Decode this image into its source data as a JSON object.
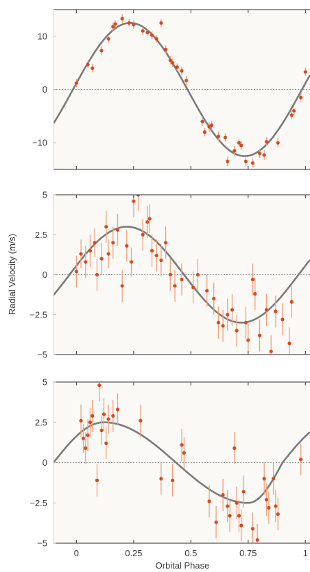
{
  "figure": {
    "ylabel": "Radial Velocity (m/s)",
    "xlabel": "Orbital Phase",
    "x_tick_labels": [
      "0",
      "0.25",
      "0.5",
      "0.75",
      "1"
    ]
  },
  "colors": {
    "point": "#d9481f",
    "errorbar": "#f0a07c",
    "model_curve": "#7a7a7a",
    "zero_line": "#9a9a9a",
    "frame": "#555555",
    "plot_bg": "#fbf9f5"
  },
  "chart_data": [
    {
      "type": "scatter",
      "xlim": [
        -0.1,
        1.02
      ],
      "ylim": [
        -15,
        15
      ],
      "y_ticks": [
        -10,
        0,
        10
      ],
      "y_tick_labels": [
        "−10",
        "0",
        "10"
      ],
      "model": {
        "amplitude": 12.5,
        "peak_phase": 0.235
      },
      "points": [
        {
          "x": 0.0,
          "y": 1.2,
          "err": 0.8
        },
        {
          "x": 0.05,
          "y": 4.7,
          "err": 0.7
        },
        {
          "x": 0.07,
          "y": 4.0,
          "err": 0.8
        },
        {
          "x": 0.11,
          "y": 7.3,
          "err": 0.8
        },
        {
          "x": 0.14,
          "y": 9.5,
          "err": 0.7
        },
        {
          "x": 0.16,
          "y": 11.8,
          "err": 0.8
        },
        {
          "x": 0.17,
          "y": 12.3,
          "err": 0.7
        },
        {
          "x": 0.2,
          "y": 13.3,
          "err": 0.8
        },
        {
          "x": 0.23,
          "y": 12.5,
          "err": 0.7
        },
        {
          "x": 0.25,
          "y": 12.2,
          "err": 0.8
        },
        {
          "x": 0.29,
          "y": 11.0,
          "err": 0.8
        },
        {
          "x": 0.31,
          "y": 10.7,
          "err": 0.7
        },
        {
          "x": 0.33,
          "y": 10.2,
          "err": 0.8
        },
        {
          "x": 0.35,
          "y": 9.5,
          "err": 0.7
        },
        {
          "x": 0.37,
          "y": 12.5,
          "err": 0.8
        },
        {
          "x": 0.39,
          "y": 7.5,
          "err": 0.8
        },
        {
          "x": 0.41,
          "y": 5.5,
          "err": 0.8
        },
        {
          "x": 0.42,
          "y": 5.0,
          "err": 0.8
        },
        {
          "x": 0.44,
          "y": 4.2,
          "err": 0.7
        },
        {
          "x": 0.46,
          "y": 3.5,
          "err": 0.8
        },
        {
          "x": 0.48,
          "y": 1.7,
          "err": 0.8
        },
        {
          "x": 0.55,
          "y": -6.0,
          "err": 0.9
        },
        {
          "x": 0.56,
          "y": -8.0,
          "err": 0.8
        },
        {
          "x": 0.58,
          "y": -7.0,
          "err": 0.9
        },
        {
          "x": 0.59,
          "y": -6.7,
          "err": 0.8
        },
        {
          "x": 0.62,
          "y": -8.8,
          "err": 0.9
        },
        {
          "x": 0.65,
          "y": -9.0,
          "err": 0.8
        },
        {
          "x": 0.66,
          "y": -13.5,
          "err": 0.9
        },
        {
          "x": 0.69,
          "y": -11.5,
          "err": 0.9
        },
        {
          "x": 0.71,
          "y": -10.0,
          "err": 0.8
        },
        {
          "x": 0.72,
          "y": -10.5,
          "err": 0.9
        },
        {
          "x": 0.74,
          "y": -13.5,
          "err": 0.9
        },
        {
          "x": 0.77,
          "y": -13.8,
          "err": 0.8
        },
        {
          "x": 0.8,
          "y": -12.0,
          "err": 0.9
        },
        {
          "x": 0.82,
          "y": -12.3,
          "err": 0.9
        },
        {
          "x": 0.83,
          "y": -9.8,
          "err": 0.8
        },
        {
          "x": 0.88,
          "y": -10.0,
          "err": 0.9
        },
        {
          "x": 0.94,
          "y": -4.8,
          "err": 0.8
        },
        {
          "x": 0.95,
          "y": -4.0,
          "err": 0.8
        },
        {
          "x": 0.98,
          "y": -1.5,
          "err": 0.8
        },
        {
          "x": 1.0,
          "y": 3.3,
          "err": 0.8
        }
      ]
    },
    {
      "type": "scatter",
      "xlim": [
        -0.1,
        1.02
      ],
      "ylim": [
        -5,
        5
      ],
      "y_ticks": [
        -5,
        -2.5,
        0,
        2.5,
        5
      ],
      "y_tick_labels": [
        "−5",
        "−2.5",
        "0",
        "2.5",
        "5"
      ],
      "model": {
        "amplitude": 3.0,
        "peak_phase": 0.22
      },
      "points": [
        {
          "x": 0.0,
          "y": 0.2,
          "err": 1.0
        },
        {
          "x": 0.02,
          "y": 1.3,
          "err": 0.9
        },
        {
          "x": 0.04,
          "y": 0.8,
          "err": 1.0
        },
        {
          "x": 0.06,
          "y": 1.5,
          "err": 1.0
        },
        {
          "x": 0.08,
          "y": 2.0,
          "err": 0.9
        },
        {
          "x": 0.09,
          "y": 0.0,
          "err": 1.0
        },
        {
          "x": 0.11,
          "y": 1.0,
          "err": 1.0
        },
        {
          "x": 0.13,
          "y": 3.0,
          "err": 1.0
        },
        {
          "x": 0.14,
          "y": 1.3,
          "err": 0.9
        },
        {
          "x": 0.16,
          "y": 2.0,
          "err": 1.0
        },
        {
          "x": 0.18,
          "y": 2.8,
          "err": 1.0
        },
        {
          "x": 0.2,
          "y": -0.7,
          "err": 1.0
        },
        {
          "x": 0.22,
          "y": 1.8,
          "err": 1.0
        },
        {
          "x": 0.24,
          "y": 0.8,
          "err": 0.9
        },
        {
          "x": 0.25,
          "y": 4.6,
          "err": 1.0
        },
        {
          "x": 0.27,
          "y": 5.0,
          "err": 1.0
        },
        {
          "x": 0.29,
          "y": 2.5,
          "err": 1.0
        },
        {
          "x": 0.31,
          "y": 3.3,
          "err": 1.0
        },
        {
          "x": 0.32,
          "y": 3.5,
          "err": 0.9
        },
        {
          "x": 0.33,
          "y": 1.5,
          "err": 1.0
        },
        {
          "x": 0.35,
          "y": 1.2,
          "err": 1.0
        },
        {
          "x": 0.37,
          "y": 0.9,
          "err": 1.0
        },
        {
          "x": 0.39,
          "y": 2.0,
          "err": 1.0
        },
        {
          "x": 0.41,
          "y": 0.0,
          "err": 1.0
        },
        {
          "x": 0.43,
          "y": -0.7,
          "err": 1.0
        },
        {
          "x": 0.46,
          "y": -0.3,
          "err": 1.0
        },
        {
          "x": 0.51,
          "y": -0.8,
          "err": 1.0
        },
        {
          "x": 0.53,
          "y": 0.0,
          "err": 1.0
        },
        {
          "x": 0.57,
          "y": -1.0,
          "err": 1.0
        },
        {
          "x": 0.6,
          "y": -1.5,
          "err": 1.0
        },
        {
          "x": 0.62,
          "y": -3.0,
          "err": 1.0
        },
        {
          "x": 0.64,
          "y": -3.2,
          "err": 1.0
        },
        {
          "x": 0.66,
          "y": -2.5,
          "err": 1.0
        },
        {
          "x": 0.68,
          "y": -2.2,
          "err": 1.0
        },
        {
          "x": 0.7,
          "y": -3.5,
          "err": 1.0
        },
        {
          "x": 0.74,
          "y": -3.0,
          "err": 1.0
        },
        {
          "x": 0.75,
          "y": -4.1,
          "err": 1.0
        },
        {
          "x": 0.77,
          "y": -0.3,
          "err": 1.0
        },
        {
          "x": 0.78,
          "y": -1.2,
          "err": 1.0
        },
        {
          "x": 0.8,
          "y": -3.8,
          "err": 1.0
        },
        {
          "x": 0.83,
          "y": -2.2,
          "err": 1.0
        },
        {
          "x": 0.85,
          "y": -4.8,
          "err": 1.0
        },
        {
          "x": 0.87,
          "y": -2.3,
          "err": 1.0
        },
        {
          "x": 0.9,
          "y": -2.8,
          "err": 1.0
        },
        {
          "x": 0.93,
          "y": -4.3,
          "err": 1.0
        },
        {
          "x": 0.94,
          "y": -1.7,
          "err": 1.0
        }
      ]
    },
    {
      "type": "scatter",
      "xlim": [
        -0.1,
        1.02
      ],
      "ylim": [
        -5,
        5
      ],
      "y_ticks": [
        -5,
        -2.5,
        0,
        2.5,
        5
      ],
      "y_tick_labels": [
        "−5",
        "−2.5",
        "0",
        "2.5",
        "5"
      ],
      "model": {
        "amplitude": 2.5,
        "peak_phase": 0.13,
        "eccentric": true
      },
      "points": [
        {
          "x": 0.02,
          "y": 2.6,
          "err": 1.0
        },
        {
          "x": 0.03,
          "y": 1.5,
          "err": 0.9
        },
        {
          "x": 0.04,
          "y": 0.9,
          "err": 1.0
        },
        {
          "x": 0.05,
          "y": 1.7,
          "err": 1.0
        },
        {
          "x": 0.06,
          "y": 2.5,
          "err": 0.9
        },
        {
          "x": 0.07,
          "y": 2.9,
          "err": 1.0
        },
        {
          "x": 0.09,
          "y": -1.1,
          "err": 1.0
        },
        {
          "x": 0.1,
          "y": 4.8,
          "err": 1.0
        },
        {
          "x": 0.11,
          "y": 2.0,
          "err": 0.9
        },
        {
          "x": 0.12,
          "y": 3.0,
          "err": 1.0
        },
        {
          "x": 0.13,
          "y": 1.2,
          "err": 1.0
        },
        {
          "x": 0.14,
          "y": 2.7,
          "err": 0.9
        },
        {
          "x": 0.16,
          "y": 2.9,
          "err": 1.0
        },
        {
          "x": 0.18,
          "y": 3.3,
          "err": 1.0
        },
        {
          "x": 0.28,
          "y": 2.6,
          "err": 1.0
        },
        {
          "x": 0.37,
          "y": -1.0,
          "err": 1.0
        },
        {
          "x": 0.42,
          "y": -1.1,
          "err": 1.0
        },
        {
          "x": 0.46,
          "y": 1.1,
          "err": 1.0
        },
        {
          "x": 0.47,
          "y": 0.6,
          "err": 1.0
        },
        {
          "x": 0.58,
          "y": -2.4,
          "err": 1.0
        },
        {
          "x": 0.61,
          "y": -3.7,
          "err": 1.0
        },
        {
          "x": 0.64,
          "y": -2.0,
          "err": 1.0
        },
        {
          "x": 0.66,
          "y": -2.7,
          "err": 1.0
        },
        {
          "x": 0.67,
          "y": -3.3,
          "err": 1.0
        },
        {
          "x": 0.69,
          "y": 0.9,
          "err": 1.0
        },
        {
          "x": 0.7,
          "y": -2.5,
          "err": 1.0
        },
        {
          "x": 0.71,
          "y": -3.3,
          "err": 1.0
        },
        {
          "x": 0.72,
          "y": -3.9,
          "err": 1.0
        },
        {
          "x": 0.73,
          "y": -1.8,
          "err": 1.0
        },
        {
          "x": 0.77,
          "y": -4.1,
          "err": 1.0
        },
        {
          "x": 0.79,
          "y": -4.8,
          "err": 1.0
        },
        {
          "x": 0.82,
          "y": -1.0,
          "err": 1.0
        },
        {
          "x": 0.83,
          "y": -2.3,
          "err": 1.0
        },
        {
          "x": 0.84,
          "y": -2.8,
          "err": 1.0
        },
        {
          "x": 0.86,
          "y": -1.0,
          "err": 1.0
        },
        {
          "x": 0.87,
          "y": -2.7,
          "err": 1.0
        },
        {
          "x": 0.88,
          "y": -3.2,
          "err": 1.0
        },
        {
          "x": 0.98,
          "y": 0.2,
          "err": 1.0
        }
      ]
    }
  ]
}
